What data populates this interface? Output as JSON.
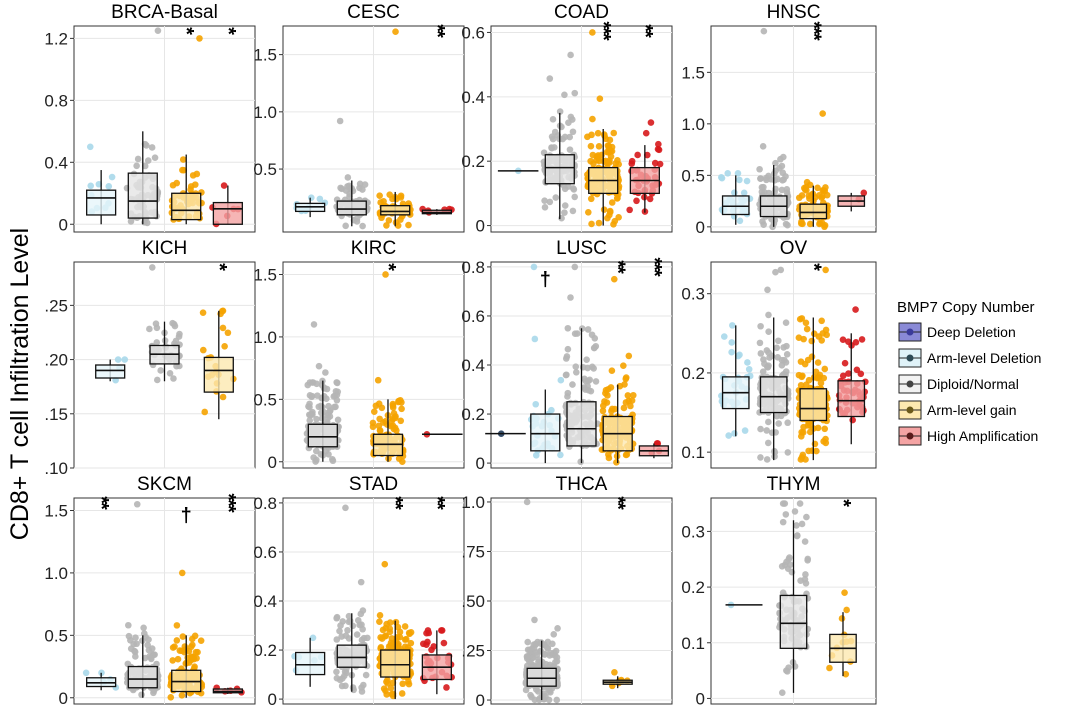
{
  "figure": {
    "ylabel": "CD8+ T cell Infiltration Level",
    "legend": {
      "title": "BMP7 Copy Number",
      "placement": "right",
      "entries": [
        {
          "label": "Deep Deletion",
          "fill": "#8a8ad6",
          "point": "#3b3b9a"
        },
        {
          "label": "Arm-level Deletion",
          "fill": "#dff2f8",
          "point": "#2d4a55"
        },
        {
          "label": "Diploid/Normal",
          "fill": "#f2f2f2",
          "point": "#444444"
        },
        {
          "label": "Arm-level gain",
          "fill": "#fde9b0",
          "point": "#6b5a1a"
        },
        {
          "label": "High Amplification",
          "fill": "#f4a3a3",
          "point": "#5a1a1a"
        }
      ]
    },
    "colors": {
      "arm_deletion_points": "#a8d8ea",
      "arm_deletion_box": "#e6f5fa",
      "diploid_points": "#b5b5b5",
      "diploid_box": "#e5e5e5",
      "gain_points": "#f5a300",
      "gain_box": "#fde9b0",
      "amp_points": "#d7191c",
      "amp_box": "#f4a3a3"
    }
  },
  "chart_data": [
    {
      "type": "boxplot",
      "title": "BRCA-Basal",
      "ylim": [
        -0.05,
        1.28
      ],
      "ticks": [
        0,
        0.4,
        0.8,
        1.2
      ],
      "tick_labels": [
        "0",
        "0.4",
        "0.8",
        "1.2"
      ],
      "groups": [
        {
          "name": "Arm-level Deletion",
          "box": [
            0.0,
            0.06,
            0.17,
            0.22,
            0.35
          ],
          "n": 10,
          "max": 0.5
        },
        {
          "name": "Diploid/Normal",
          "box": [
            0.0,
            0.04,
            0.15,
            0.33,
            0.6
          ],
          "n": 60,
          "max": 1.25
        },
        {
          "name": "Arm-level gain",
          "box": [
            0.0,
            0.03,
            0.09,
            0.2,
            0.45
          ],
          "n": 50,
          "max": 1.2
        },
        {
          "name": "High Amplification",
          "box": [
            0.0,
            0.0,
            0.1,
            0.14,
            0.25
          ],
          "n": 6,
          "max": 0.25
        }
      ],
      "sig": [
        {
          "group": "Arm-level gain",
          "label": "*"
        },
        {
          "group": "High Amplification",
          "label": "*"
        }
      ]
    },
    {
      "type": "boxplot",
      "title": "CESC",
      "ylim": [
        -0.05,
        1.75
      ],
      "ticks": [
        0.5,
        1.0,
        1.5
      ],
      "tick_labels": [
        "0.5",
        "1.0",
        "1.5"
      ],
      "groups": [
        {
          "name": "Arm-level Deletion",
          "box": [
            0.08,
            0.13,
            0.17,
            0.2,
            0.25
          ],
          "n": 8,
          "max": 0.25
        },
        {
          "name": "Diploid/Normal",
          "box": [
            0.0,
            0.1,
            0.15,
            0.22,
            0.4
          ],
          "n": 80,
          "max": 0.92
        },
        {
          "name": "Arm-level gain",
          "box": [
            0.0,
            0.1,
            0.13,
            0.18,
            0.3
          ],
          "n": 70,
          "max": 1.7
        },
        {
          "name": "High Amplification",
          "box": [
            0.1,
            0.11,
            0.12,
            0.14,
            0.15
          ],
          "n": 6,
          "max": 0.15
        }
      ],
      "sig": [
        {
          "group": "High Amplification",
          "label": "**"
        }
      ]
    },
    {
      "type": "boxplot",
      "title": "COAD",
      "ylim": [
        -0.02,
        0.62
      ],
      "ticks": [
        0,
        0.2,
        0.4,
        0.6
      ],
      "tick_labels": [
        "0",
        "0.2",
        "0.4",
        "0.6"
      ],
      "groups": [
        {
          "name": "Arm-level Deletion",
          "box": [
            0.17,
            0.17,
            0.17,
            0.17,
            0.17
          ],
          "n": 1,
          "max": 0.17
        },
        {
          "name": "Diploid/Normal",
          "box": [
            0.02,
            0.13,
            0.18,
            0.22,
            0.35
          ],
          "n": 120,
          "max": 0.53
        },
        {
          "name": "Arm-level gain",
          "box": [
            0.0,
            0.1,
            0.14,
            0.18,
            0.3
          ],
          "n": 150,
          "max": 0.6
        },
        {
          "name": "High Amplification",
          "box": [
            0.04,
            0.1,
            0.14,
            0.18,
            0.25
          ],
          "n": 40,
          "max": 0.32
        }
      ],
      "sig": [
        {
          "group": "Arm-level gain",
          "label": "***"
        },
        {
          "group": "High Amplification",
          "label": "**"
        }
      ]
    },
    {
      "type": "boxplot",
      "title": "HNSC",
      "ylim": [
        -0.05,
        1.95
      ],
      "ticks": [
        0,
        0.5,
        1.0,
        1.5
      ],
      "tick_labels": [
        "0",
        "0.5",
        "1.0",
        "1.5"
      ],
      "groups": [
        {
          "name": "Arm-level Deletion",
          "box": [
            0.02,
            0.12,
            0.2,
            0.3,
            0.5
          ],
          "n": 30,
          "max": 0.52
        },
        {
          "name": "Diploid/Normal",
          "box": [
            0.0,
            0.1,
            0.2,
            0.3,
            0.6
          ],
          "n": 120,
          "max": 1.9
        },
        {
          "name": "Arm-level gain",
          "box": [
            0.0,
            0.08,
            0.14,
            0.22,
            0.4
          ],
          "n": 90,
          "max": 1.1
        },
        {
          "name": "High Amplification",
          "box": [
            0.15,
            0.2,
            0.25,
            0.3,
            0.33
          ],
          "n": 2,
          "max": 0.33
        }
      ],
      "sig": [
        {
          "group": "Arm-level gain",
          "label": "***"
        }
      ]
    },
    {
      "type": "boxplot",
      "title": "KICH",
      "ylim": [
        0.1,
        0.29
      ],
      "ticks": [
        0.1,
        0.15,
        0.2,
        0.25
      ],
      "tick_labels": [
        ".10",
        ".15",
        ".20",
        ".25"
      ],
      "groups": [
        {
          "name": "Arm-level Deletion",
          "box": [
            0.18,
            0.183,
            0.19,
            0.195,
            0.2
          ],
          "n": 4,
          "max": 0.2
        },
        {
          "name": "Diploid/Normal",
          "box": [
            0.18,
            0.196,
            0.205,
            0.213,
            0.235
          ],
          "n": 40,
          "max": 0.285
        },
        {
          "name": "Arm-level gain",
          "box": [
            0.145,
            0.17,
            0.19,
            0.202,
            0.245
          ],
          "n": 20,
          "max": 0.245
        }
      ],
      "sig": [
        {
          "group": "Arm-level gain",
          "label": "*"
        }
      ]
    },
    {
      "type": "boxplot",
      "title": "KIRC",
      "ylim": [
        -0.05,
        1.6
      ],
      "ticks": [
        0,
        0.5,
        1.0,
        1.5
      ],
      "tick_labels": [
        "0",
        "0.5",
        "1.0",
        "1.5"
      ],
      "groups": [
        {
          "name": "Diploid/Normal",
          "box": [
            0.0,
            0.12,
            0.2,
            0.3,
            0.65
          ],
          "n": 200,
          "max": 1.1
        },
        {
          "name": "Arm-level gain",
          "box": [
            0.0,
            0.05,
            0.14,
            0.22,
            0.5
          ],
          "n": 100,
          "max": 1.5
        },
        {
          "name": "High Amplification",
          "box": [
            0.22,
            0.22,
            0.22,
            0.22,
            0.22
          ],
          "n": 1,
          "max": 0.22
        }
      ],
      "sig": [
        {
          "group": "Arm-level gain",
          "label": "*"
        }
      ]
    },
    {
      "type": "boxplot",
      "title": "LUSC",
      "ylim": [
        -0.02,
        0.82
      ],
      "ticks": [
        0,
        0.2,
        0.4,
        0.6,
        0.8
      ],
      "tick_labels": [
        "0",
        "0.2",
        "0.4",
        "0.6",
        "0.8"
      ],
      "groups": [
        {
          "name": "Deep Deletion",
          "box": [
            0.12,
            0.12,
            0.12,
            0.12,
            0.12
          ],
          "n": 1,
          "max": 0.12
        },
        {
          "name": "Arm-level Deletion",
          "box": [
            0.0,
            0.05,
            0.12,
            0.2,
            0.3
          ],
          "n": 30,
          "max": 0.8
        },
        {
          "name": "Diploid/Normal",
          "box": [
            0.0,
            0.07,
            0.14,
            0.25,
            0.55
          ],
          "n": 120,
          "max": 0.8
        },
        {
          "name": "Arm-level gain",
          "box": [
            0.0,
            0.05,
            0.12,
            0.19,
            0.32
          ],
          "n": 130,
          "max": 0.75
        },
        {
          "name": "High Amplification",
          "box": [
            0.02,
            0.03,
            0.05,
            0.07,
            0.08
          ],
          "n": 4,
          "max": 0.08
        }
      ],
      "sig": [
        {
          "group": "Arm-level Deletion",
          "label": "†"
        },
        {
          "group": "Arm-level gain",
          "label": "**"
        },
        {
          "group": "High Amplification",
          "label": "***"
        }
      ]
    },
    {
      "type": "boxplot",
      "title": "OV",
      "ylim": [
        0.08,
        0.34
      ],
      "ticks": [
        0.1,
        0.2,
        0.3
      ],
      "tick_labels": [
        "0.1",
        "0.2",
        "0.3"
      ],
      "groups": [
        {
          "name": "Arm-level Deletion",
          "box": [
            0.12,
            0.155,
            0.175,
            0.195,
            0.26
          ],
          "n": 30,
          "max": 0.26
        },
        {
          "name": "Diploid/Normal",
          "box": [
            0.09,
            0.15,
            0.17,
            0.195,
            0.27
          ],
          "n": 130,
          "max": 0.33
        },
        {
          "name": "Arm-level gain",
          "box": [
            0.09,
            0.14,
            0.155,
            0.18,
            0.27
          ],
          "n": 170,
          "max": 0.33
        },
        {
          "name": "High Amplification",
          "box": [
            0.11,
            0.145,
            0.165,
            0.19,
            0.25
          ],
          "n": 45,
          "max": 0.28
        }
      ],
      "sig": [
        {
          "group": "Arm-level gain",
          "label": "*"
        }
      ]
    },
    {
      "type": "boxplot",
      "title": "SKCM",
      "ylim": [
        -0.05,
        1.6
      ],
      "ticks": [
        0,
        0.5,
        1.0,
        1.5
      ],
      "tick_labels": [
        "0",
        "0.5",
        "1.0",
        "1.5"
      ],
      "groups": [
        {
          "name": "Arm-level Deletion",
          "box": [
            0.06,
            0.09,
            0.12,
            0.16,
            0.2
          ],
          "n": 5,
          "max": 0.2
        },
        {
          "name": "Diploid/Normal",
          "box": [
            0.0,
            0.08,
            0.15,
            0.25,
            0.5
          ],
          "n": 120,
          "max": 1.55
        },
        {
          "name": "Arm-level gain",
          "box": [
            0.0,
            0.05,
            0.13,
            0.22,
            0.5
          ],
          "n": 120,
          "max": 1.0
        },
        {
          "name": "High Amplification",
          "box": [
            0.03,
            0.04,
            0.05,
            0.07,
            0.08
          ],
          "n": 5,
          "max": 0.08
        }
      ],
      "sig": [
        {
          "group": "Arm-level Deletion",
          "label": "**"
        },
        {
          "group": "Arm-level gain",
          "label": "†"
        },
        {
          "group": "High Amplification",
          "label": "***"
        }
      ]
    },
    {
      "type": "boxplot",
      "title": "STAD",
      "ylim": [
        -0.02,
        0.82
      ],
      "ticks": [
        0,
        0.2,
        0.4,
        0.6,
        0.8
      ],
      "tick_labels": [
        "0",
        "0.2",
        "0.4",
        "0.6",
        "0.8"
      ],
      "groups": [
        {
          "name": "Arm-level Deletion",
          "box": [
            0.05,
            0.1,
            0.14,
            0.19,
            0.25
          ],
          "n": 6,
          "max": 0.25
        },
        {
          "name": "Diploid/Normal",
          "box": [
            0.03,
            0.13,
            0.17,
            0.22,
            0.35
          ],
          "n": 120,
          "max": 0.78
        },
        {
          "name": "Arm-level gain",
          "box": [
            0.0,
            0.09,
            0.14,
            0.2,
            0.32
          ],
          "n": 160,
          "max": 0.55
        },
        {
          "name": "High Amplification",
          "box": [
            0.02,
            0.08,
            0.13,
            0.18,
            0.28
          ],
          "n": 30,
          "max": 0.28
        }
      ],
      "sig": [
        {
          "group": "Arm-level gain",
          "label": "**"
        },
        {
          "group": "High Amplification",
          "label": "**"
        }
      ]
    },
    {
      "type": "boxplot",
      "title": "THCA",
      "ylim": [
        -0.02,
        1.02
      ],
      "ticks": [
        0,
        0.25,
        0.5,
        0.75,
        1.0
      ],
      "tick_labels": [
        "0",
        ".25",
        ".50",
        ".75",
        "1.0"
      ],
      "groups": [
        {
          "name": "Diploid/Normal",
          "box": [
            0.0,
            0.07,
            0.11,
            0.16,
            0.3
          ],
          "n": 250,
          "max": 1.0
        },
        {
          "name": "Arm-level gain",
          "box": [
            0.06,
            0.08,
            0.09,
            0.1,
            0.12
          ],
          "n": 8,
          "max": 0.14
        }
      ],
      "sig": [
        {
          "group": "Arm-level gain",
          "label": "**"
        }
      ]
    },
    {
      "type": "boxplot",
      "title": "THYM",
      "ylim": [
        -0.01,
        0.36
      ],
      "ticks": [
        0,
        0.1,
        0.2,
        0.3
      ],
      "tick_labels": [
        "0",
        "0.1",
        "0.2",
        "0.3"
      ],
      "groups": [
        {
          "name": "Arm-level Deletion",
          "box": [
            0.168,
            0.168,
            0.168,
            0.168,
            0.168
          ],
          "n": 1,
          "max": 0.168
        },
        {
          "name": "Diploid/Normal",
          "box": [
            0.01,
            0.09,
            0.135,
            0.185,
            0.32
          ],
          "n": 90,
          "max": 0.35
        },
        {
          "name": "Arm-level gain",
          "box": [
            0.04,
            0.065,
            0.09,
            0.115,
            0.155
          ],
          "n": 12,
          "max": 0.19
        }
      ],
      "sig": [
        {
          "group": "Arm-level gain",
          "label": "*"
        }
      ]
    }
  ]
}
